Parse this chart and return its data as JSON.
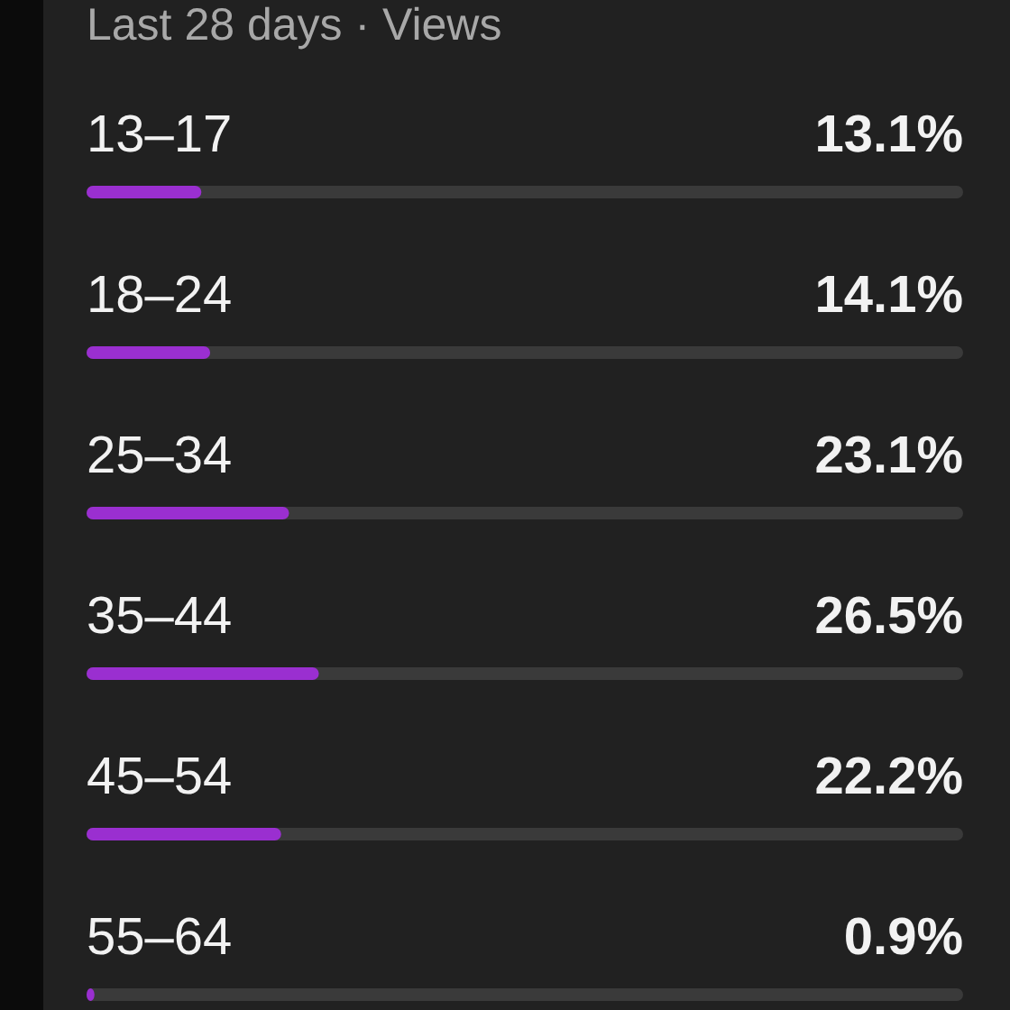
{
  "chart_data": {
    "type": "bar",
    "orientation": "horizontal",
    "title": "Last 28 days · Views",
    "categories": [
      "13–17",
      "18–24",
      "25–34",
      "35–44",
      "45–54",
      "55–64"
    ],
    "values": [
      13.1,
      14.1,
      23.1,
      26.5,
      22.2,
      0.9
    ],
    "value_labels": [
      "13.1%",
      "14.1%",
      "23.1%",
      "26.5%",
      "22.2%",
      "0.9%"
    ],
    "color": "#9a2fd0",
    "xlim": [
      0,
      100
    ]
  }
}
